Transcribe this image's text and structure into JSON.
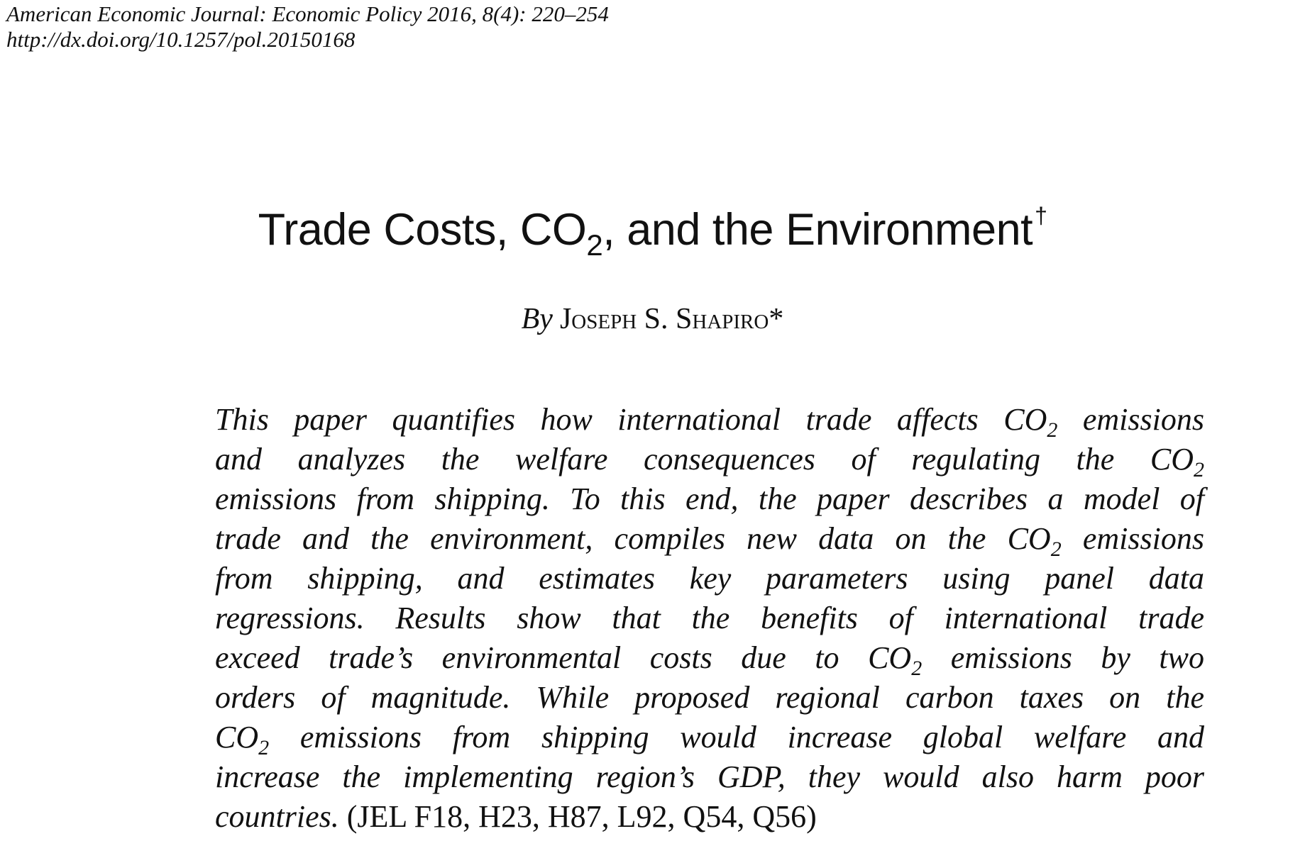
{
  "header": {
    "journal_citation": "American Economic Journal: Economic Policy 2016, 8(4): 220–254",
    "doi_url": "http://dx.doi.org/10.1257/pol.20150168"
  },
  "paper": {
    "title_before_sub": "Trade Costs, CO",
    "title_subscript": "2",
    "title_after_sub": ", and the Environment",
    "title_footnote_mark": "†",
    "author_prefix": "By",
    "author_name": "Joseph S. Shapiro*"
  },
  "abstract": {
    "lines": [
      {
        "pre": "This paper quantifies how international trade affects CO",
        "sub": "2",
        "post": " emissions",
        "justify": true
      },
      {
        "pre": "and analyzes the welfare consequences of regulating the CO",
        "sub": "2",
        "post": "",
        "justify": true
      },
      {
        "pre": "emissions from shipping. To this end, the paper describes a model of",
        "sub": "",
        "post": "",
        "justify": true
      },
      {
        "pre": "trade and the environment, compiles new data on the CO",
        "sub": "2",
        "post": " emissions",
        "justify": true
      },
      {
        "pre": "from shipping, and estimates key parameters using panel data",
        "sub": "",
        "post": "",
        "justify": true
      },
      {
        "pre": "regressions. Results show that the benefits of international trade",
        "sub": "",
        "post": "",
        "justify": true
      },
      {
        "pre": "exceed trade’s environmental costs due to CO",
        "sub": "2",
        "post": " emissions by two",
        "justify": true
      },
      {
        "pre": "orders of magnitude. While proposed regional carbon taxes on the",
        "sub": "",
        "post": "",
        "justify": true
      },
      {
        "pre": "CO",
        "sub": "2",
        "post": " emissions from shipping would increase global welfare and",
        "justify": true
      },
      {
        "pre": "increase the implementing region’s GDP, they would also harm poor",
        "sub": "",
        "post": "",
        "justify": true
      },
      {
        "pre": "countries. ",
        "sub": "",
        "post": "",
        "justify": false
      }
    ],
    "jel_codes": "(JEL F18, H23, H87, L92, Q54, Q56)"
  }
}
